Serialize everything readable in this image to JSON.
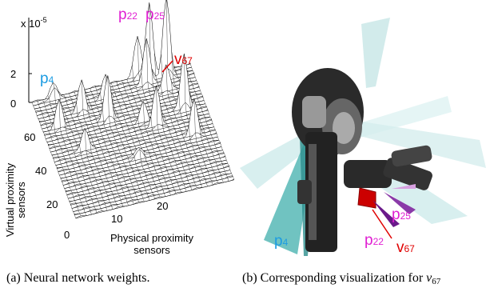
{
  "figure": {
    "left": {
      "scale_base": "x 10",
      "scale_exponent": "-5",
      "z_ticks": [
        "2",
        "0"
      ],
      "y_ticks": [
        "60",
        "40",
        "20"
      ],
      "x_ticks": [
        "0",
        "10",
        "20"
      ],
      "y_label": [
        "Virtual proximity",
        "sensors"
      ],
      "x_label": [
        "Physical proximity",
        "sensors"
      ],
      "annotations": [
        {
          "letter": "p",
          "index": "4"
        },
        {
          "letter": "p",
          "index": "22"
        },
        {
          "letter": "p",
          "index": "25"
        },
        {
          "letter": "v",
          "index": "67"
        }
      ]
    },
    "right": {
      "annotations": [
        {
          "letter": "p",
          "index": "4"
        },
        {
          "letter": "p",
          "index": "22"
        },
        {
          "letter": "p",
          "index": "25"
        },
        {
          "letter": "v",
          "index": "67"
        }
      ]
    },
    "captions": {
      "a": "(a) Neural network weights.",
      "b": "(b) Corresponding visualization for",
      "b_symbol": "v",
      "b_index": "67"
    }
  }
}
